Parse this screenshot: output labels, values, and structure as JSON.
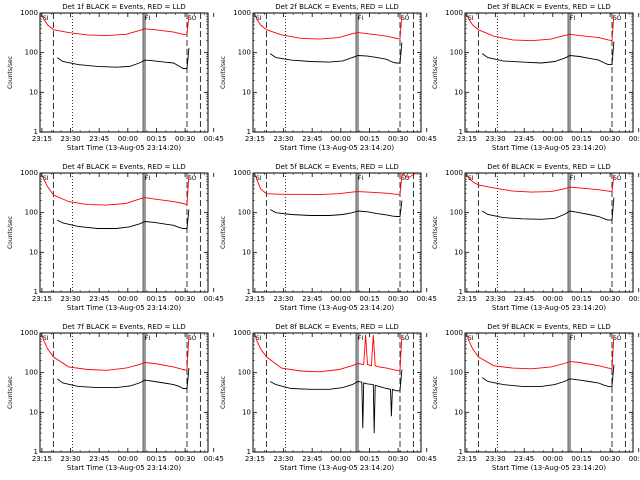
{
  "figure": {
    "xlabel": "Start Time (13-Aug-05 23:14:20)",
    "ylabel": "Counts/sec"
  },
  "chart_data": [
    {
      "type": "line",
      "title": "Det 1f BLACK = Events, RED = LLD",
      "flag": "none",
      "ylim": [
        1,
        1000
      ],
      "y_scale": "log",
      "x_ticks": [
        "23:15",
        "23:30",
        "23:45",
        "00:00",
        "00:15",
        "00:30",
        "00:45"
      ],
      "y_ticks": [
        "1",
        "10",
        "100",
        "1000"
      ],
      "series": [
        {
          "color": "#ff0000",
          "x": [
            0,
            1,
            2,
            4,
            7,
            15,
            25,
            35,
            45,
            52,
            55,
            60,
            70,
            75,
            77,
            78
          ],
          "y": [
            900,
            880,
            700,
            500,
            380,
            320,
            280,
            270,
            290,
            360,
            400,
            380,
            330,
            290,
            280,
            900
          ]
        },
        {
          "color": "#000000",
          "x": [
            9,
            12,
            20,
            30,
            40,
            47,
            52,
            55,
            60,
            65,
            70,
            73,
            75,
            77,
            78
          ],
          "y": [
            75,
            60,
            50,
            45,
            43,
            45,
            55,
            65,
            62,
            58,
            55,
            45,
            40,
            40,
            130
          ]
        }
      ]
    },
    {
      "type": "line",
      "title": "Det 2f BLACK = Events, RED = LLD",
      "flag": "none",
      "ylim": [
        1,
        1000
      ],
      "y_scale": "log",
      "x_ticks": [
        "23:15",
        "23:30",
        "23:45",
        "00:00",
        "00:15",
        "00:30",
        "00:45"
      ],
      "y_ticks": [
        "1",
        "10",
        "100",
        "1000"
      ],
      "series": [
        {
          "color": "#ff0000",
          "x": [
            0,
            1,
            2,
            4,
            7,
            15,
            25,
            35,
            45,
            52,
            55,
            60,
            70,
            75,
            77,
            78
          ],
          "y": [
            900,
            880,
            700,
            500,
            380,
            280,
            230,
            220,
            240,
            300,
            320,
            300,
            260,
            230,
            220,
            900
          ]
        },
        {
          "color": "#000000",
          "x": [
            9,
            12,
            20,
            30,
            40,
            47,
            52,
            55,
            60,
            65,
            70,
            73,
            75,
            77,
            78
          ],
          "y": [
            95,
            75,
            65,
            60,
            58,
            62,
            75,
            85,
            82,
            75,
            68,
            58,
            55,
            55,
            180
          ]
        }
      ]
    },
    {
      "type": "line",
      "title": "Det 3f BLACK = Events, RED = LLD",
      "flag": "none",
      "ylim": [
        1,
        1000
      ],
      "y_scale": "log",
      "x_ticks": [
        "23:15",
        "23:30",
        "23:45",
        "00:00",
        "00:15",
        "00:30",
        "00:45"
      ],
      "y_ticks": [
        "1",
        "10",
        "100",
        "1000"
      ],
      "series": [
        {
          "color": "#ff0000",
          "x": [
            0,
            1,
            2,
            4,
            7,
            15,
            25,
            35,
            45,
            52,
            55,
            60,
            70,
            75,
            77,
            78
          ],
          "y": [
            900,
            880,
            700,
            500,
            380,
            260,
            210,
            200,
            220,
            270,
            290,
            270,
            240,
            210,
            200,
            900
          ]
        },
        {
          "color": "#000000",
          "x": [
            9,
            12,
            20,
            30,
            40,
            47,
            52,
            55,
            60,
            65,
            70,
            73,
            75,
            77,
            78
          ],
          "y": [
            95,
            75,
            62,
            58,
            55,
            60,
            72,
            85,
            80,
            72,
            65,
            55,
            50,
            50,
            190
          ]
        }
      ]
    },
    {
      "type": "line",
      "title": "Det 4f BLACK = Events, RED = LLD",
      "flag": "none",
      "ylim": [
        1,
        1000
      ],
      "y_scale": "log",
      "x_ticks": [
        "23:15",
        "23:30",
        "23:45",
        "00:00",
        "00:15",
        "00:30",
        "00:45"
      ],
      "y_ticks": [
        "1",
        "10",
        "100",
        "1000"
      ],
      "series": [
        {
          "color": "#ff0000",
          "x": [
            0,
            1,
            2,
            4,
            7,
            15,
            25,
            35,
            45,
            52,
            55,
            60,
            70,
            75,
            77,
            78
          ],
          "y": [
            900,
            880,
            700,
            450,
            280,
            190,
            160,
            155,
            170,
            220,
            240,
            220,
            190,
            170,
            160,
            900
          ]
        },
        {
          "color": "#000000",
          "x": [
            9,
            12,
            20,
            30,
            40,
            47,
            52,
            55,
            60,
            65,
            70,
            73,
            75,
            77,
            78
          ],
          "y": [
            65,
            55,
            45,
            40,
            40,
            44,
            52,
            60,
            57,
            52,
            48,
            42,
            40,
            40,
            120
          ]
        }
      ]
    },
    {
      "type": "line",
      "title": "Det 5f BLACK = Events, RED = LLD",
      "flag": "none",
      "ylim": [
        1,
        1000
      ],
      "y_scale": "log",
      "x_ticks": [
        "23:15",
        "23:30",
        "23:45",
        "00:00",
        "00:15",
        "00:30",
        "00:45"
      ],
      "y_ticks": [
        "1",
        "10",
        "100",
        "1000"
      ],
      "series": [
        {
          "color": "#ff0000",
          "x": [
            0,
            1,
            2,
            4,
            7,
            15,
            25,
            35,
            45,
            52,
            55,
            60,
            70,
            75,
            77,
            78,
            79,
            80,
            82,
            83,
            84,
            85
          ],
          "y": [
            900,
            880,
            700,
            400,
            300,
            290,
            290,
            285,
            300,
            330,
            340,
            330,
            310,
            290,
            280,
            900,
            950,
            800,
            780,
            850,
            930,
            950
          ]
        },
        {
          "color": "#000000",
          "x": [
            9,
            12,
            20,
            30,
            40,
            47,
            52,
            55,
            60,
            65,
            70,
            73,
            75,
            77,
            78
          ],
          "y": [
            120,
            100,
            90,
            85,
            85,
            90,
            100,
            110,
            105,
            95,
            88,
            82,
            80,
            80,
            200
          ]
        }
      ]
    },
    {
      "type": "line",
      "title": "Det 6f BLACK = Events, RED = LLD",
      "flag": "none",
      "ylim": [
        1,
        1000
      ],
      "y_scale": "log",
      "x_ticks": [
        "23:15",
        "23:30",
        "23:45",
        "00:00",
        "00:15",
        "00:30",
        "00:45"
      ],
      "y_ticks": [
        "1",
        "10",
        "100",
        "1000"
      ],
      "series": [
        {
          "color": "#ff0000",
          "x": [
            0,
            1,
            2,
            4,
            7,
            15,
            25,
            35,
            45,
            52,
            55,
            60,
            70,
            75,
            77,
            78
          ],
          "y": [
            900,
            880,
            750,
            600,
            500,
            420,
            350,
            330,
            340,
            400,
            440,
            420,
            380,
            350,
            340,
            900
          ]
        },
        {
          "color": "#000000",
          "x": [
            9,
            12,
            20,
            30,
            40,
            47,
            52,
            55,
            60,
            65,
            70,
            73,
            75,
            77,
            78
          ],
          "y": [
            110,
            90,
            75,
            70,
            68,
            72,
            90,
            110,
            100,
            90,
            80,
            70,
            65,
            65,
            240
          ]
        }
      ]
    },
    {
      "type": "line",
      "title": "Det 7f BLACK = Events, RED = LLD",
      "flag": "none",
      "ylim": [
        1,
        1000
      ],
      "y_scale": "log",
      "x_ticks": [
        "23:15",
        "23:30",
        "23:45",
        "00:00",
        "00:15",
        "00:30",
        "00:45"
      ],
      "y_ticks": [
        "1",
        "10",
        "100",
        "1000"
      ],
      "series": [
        {
          "color": "#ff0000",
          "x": [
            0,
            1,
            2,
            4,
            7,
            15,
            25,
            35,
            45,
            52,
            55,
            60,
            70,
            75,
            77,
            78
          ],
          "y": [
            900,
            880,
            650,
            400,
            250,
            140,
            120,
            115,
            130,
            160,
            180,
            170,
            140,
            120,
            115,
            900
          ]
        },
        {
          "color": "#000000",
          "x": [
            9,
            12,
            20,
            30,
            40,
            47,
            52,
            55,
            60,
            65,
            70,
            73,
            75,
            77,
            78
          ],
          "y": [
            70,
            55,
            45,
            42,
            42,
            46,
            55,
            65,
            60,
            55,
            50,
            45,
            40,
            40,
            130
          ]
        }
      ]
    },
    {
      "type": "line",
      "title": "Det 8f BLACK = Events, RED = LLD",
      "flag": "none",
      "ylim": [
        1,
        1000
      ],
      "y_scale": "log",
      "x_ticks": [
        "23:15",
        "23:30",
        "23:45",
        "00:00",
        "00:15",
        "00:30",
        "00:45"
      ],
      "y_ticks": [
        "1",
        "10",
        "100",
        "1000"
      ],
      "series": [
        {
          "color": "#ff0000",
          "x": [
            0,
            1,
            2,
            4,
            7,
            15,
            25,
            35,
            45,
            52,
            55,
            58,
            59,
            60,
            62,
            63,
            64,
            66,
            70,
            75,
            77,
            78
          ],
          "y": [
            900,
            880,
            650,
            400,
            250,
            130,
            110,
            105,
            120,
            150,
            170,
            160,
            900,
            160,
            150,
            900,
            150,
            140,
            130,
            115,
            110,
            900
          ]
        },
        {
          "color": "#000000",
          "x": [
            9,
            12,
            20,
            30,
            40,
            47,
            52,
            55,
            57,
            57.5,
            58,
            60,
            63,
            63.5,
            64,
            66,
            70,
            72,
            72.5,
            73,
            75,
            77,
            78
          ],
          "y": [
            60,
            50,
            40,
            38,
            38,
            42,
            50,
            60,
            58,
            4,
            55,
            52,
            50,
            3,
            48,
            45,
            40,
            38,
            8,
            38,
            35,
            35,
            120
          ]
        }
      ]
    },
    {
      "type": "line",
      "title": "Det 9f BLACK = Events, RED = LLD",
      "flag": "none",
      "ylim": [
        1,
        1000
      ],
      "y_scale": "log",
      "x_ticks": [
        "23:15",
        "23:30",
        "23:45",
        "00:00",
        "00:15",
        "00:30",
        "00:45"
      ],
      "y_ticks": [
        "1",
        "10",
        "100",
        "1000"
      ],
      "series": [
        {
          "color": "#ff0000",
          "x": [
            0,
            1,
            2,
            4,
            7,
            15,
            25,
            35,
            45,
            52,
            55,
            60,
            70,
            75,
            77,
            78
          ],
          "y": [
            900,
            880,
            650,
            400,
            250,
            150,
            130,
            125,
            140,
            170,
            190,
            180,
            150,
            130,
            125,
            900
          ]
        },
        {
          "color": "#000000",
          "x": [
            9,
            12,
            20,
            30,
            40,
            47,
            52,
            55,
            60,
            65,
            70,
            73,
            75,
            77,
            78
          ],
          "y": [
            75,
            60,
            50,
            45,
            45,
            50,
            60,
            70,
            65,
            60,
            55,
            48,
            45,
            45,
            160
          ]
        }
      ]
    }
  ]
}
